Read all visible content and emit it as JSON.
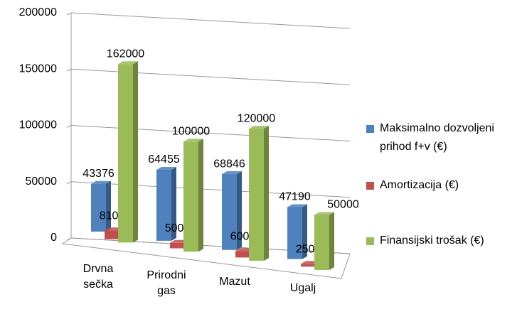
{
  "chart_data": {
    "type": "bar",
    "categories": [
      "Drvna sečka",
      "Prirodni gas",
      "Mazut",
      "Ugalj"
    ],
    "series": [
      {
        "name": "Maksimalno dozvoljeni prihod f+v (€)",
        "color": "#4f81bd",
        "values": [
          43376,
          64455,
          68846,
          47190
        ]
      },
      {
        "name": "Amortizacija (€)",
        "color": "#c0504d",
        "values": [
          8100,
          5000,
          6000,
          2500
        ]
      },
      {
        "name": "Finansijski trošak (€)",
        "color": "#9bbb59",
        "values": [
          162000,
          100000,
          120000,
          50000
        ]
      }
    ],
    "ylim": [
      0,
      200000
    ],
    "yticks": [
      0,
      50000,
      100000,
      150000,
      200000
    ],
    "grid": true,
    "legend": "right"
  }
}
